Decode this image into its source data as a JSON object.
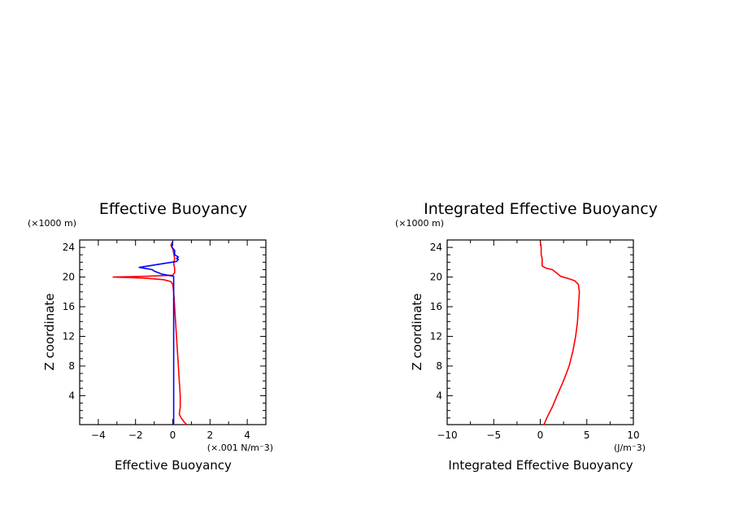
{
  "chart_data": [
    {
      "type": "line",
      "title": "Effective Buoyancy",
      "xlabel": "Effective Buoyancy",
      "ylabel": "Z coordinate",
      "x_unit": "(×.001 N/m⁻3)",
      "y_unit": "(×1000 m)",
      "xlim": [
        -5,
        5
      ],
      "ylim": [
        0.1,
        25
      ],
      "x_ticks": [
        -4,
        -2,
        0,
        2,
        4
      ],
      "x_tick_labels": [
        "−4",
        "−2",
        "0",
        "2",
        "4"
      ],
      "y_ticks": [
        4,
        8,
        12,
        16,
        20,
        24
      ],
      "y_tick_labels": [
        "4",
        "8",
        "12",
        "16",
        "20",
        "24"
      ],
      "grid": false,
      "series": [
        {
          "color": "#ff0000",
          "points": [
            [
              0.75,
              0.1
            ],
            [
              0.6,
              0.5
            ],
            [
              0.45,
              1.0
            ],
            [
              0.35,
              1.5
            ],
            [
              0.4,
              2.5
            ],
            [
              0.4,
              4
            ],
            [
              0.35,
              6
            ],
            [
              0.3,
              8
            ],
            [
              0.25,
              10
            ],
            [
              0.2,
              12
            ],
            [
              0.15,
              14
            ],
            [
              0.1,
              16
            ],
            [
              0.05,
              18
            ],
            [
              0.0,
              19.0
            ],
            [
              -0.1,
              19.4
            ],
            [
              -0.5,
              19.65
            ],
            [
              -1.5,
              19.85
            ],
            [
              -3.2,
              20.0
            ],
            [
              -1.5,
              20.1
            ],
            [
              0.0,
              20.25
            ],
            [
              0.1,
              20.6
            ],
            [
              0.1,
              21.2
            ],
            [
              0.05,
              21.8
            ],
            [
              0.1,
              22.5
            ],
            [
              0.05,
              23.2
            ],
            [
              0.0,
              23.8
            ],
            [
              -0.1,
              24.3
            ],
            [
              0.0,
              24.8
            ]
          ]
        },
        {
          "color": "#0000ff",
          "points": [
            [
              0.05,
              0.1
            ],
            [
              0.05,
              10
            ],
            [
              0.05,
              20.1
            ],
            [
              -0.6,
              20.4
            ],
            [
              -1.0,
              20.8
            ],
            [
              -1.1,
              21.0
            ],
            [
              -1.8,
              21.3
            ],
            [
              -0.8,
              21.7
            ],
            [
              0.2,
              22.1
            ],
            [
              0.3,
              22.4
            ],
            [
              0.2,
              22.5
            ],
            [
              0.3,
              22.7
            ],
            [
              0.1,
              23.0
            ],
            [
              0.1,
              23.6
            ],
            [
              -0.05,
              24.0
            ],
            [
              0.0,
              24.8
            ]
          ]
        }
      ]
    },
    {
      "type": "line",
      "title": "Integrated Effective Buoyancy",
      "xlabel": "Integrated Effective Buoyancy",
      "ylabel": "Z coordinate",
      "x_unit": "(J/m⁻3)",
      "y_unit": "(×1000 m)",
      "xlim": [
        -10,
        10
      ],
      "ylim": [
        0.1,
        25
      ],
      "x_ticks": [
        -10,
        -5,
        0,
        5,
        10
      ],
      "x_tick_labels": [
        "−10",
        "−5",
        "0",
        "5",
        "10"
      ],
      "y_ticks": [
        4,
        8,
        12,
        16,
        20,
        24
      ],
      "y_tick_labels": [
        "4",
        "8",
        "12",
        "16",
        "20",
        "24"
      ],
      "grid": false,
      "series": [
        {
          "color": "#ff0000",
          "points": [
            [
              0.4,
              0.1
            ],
            [
              0.7,
              1.0
            ],
            [
              1.3,
              2.5
            ],
            [
              1.8,
              4.0
            ],
            [
              2.5,
              6.0
            ],
            [
              3.1,
              8.0
            ],
            [
              3.5,
              10.0
            ],
            [
              3.8,
              12.0
            ],
            [
              4.0,
              14.0
            ],
            [
              4.1,
              16.0
            ],
            [
              4.2,
              18.0
            ],
            [
              4.1,
              19.0
            ],
            [
              3.7,
              19.5
            ],
            [
              3.0,
              19.8
            ],
            [
              2.2,
              20.1
            ],
            [
              1.7,
              20.6
            ],
            [
              1.3,
              21.0
            ],
            [
              0.6,
              21.2
            ],
            [
              0.2,
              21.5
            ],
            [
              0.2,
              22.0
            ],
            [
              0.2,
              22.5
            ],
            [
              0.1,
              23.0
            ],
            [
              0.1,
              23.5
            ],
            [
              0.1,
              24.0
            ],
            [
              0.0,
              24.8
            ]
          ]
        }
      ]
    }
  ]
}
